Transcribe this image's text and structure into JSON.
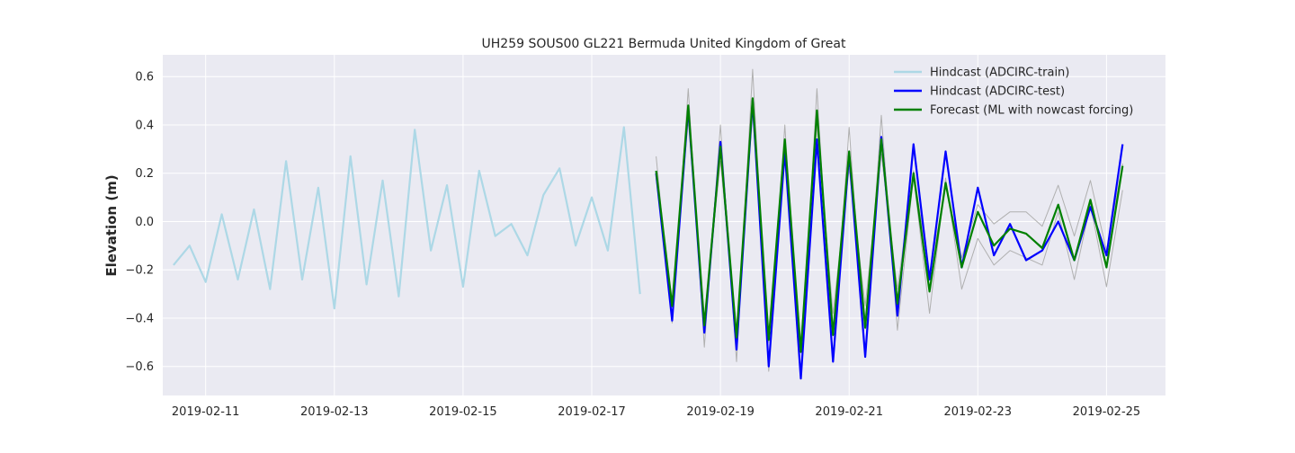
{
  "chart_data": {
    "type": "line",
    "title": "UH259 SOUS00 GL221 Bermuda United Kingdom of Great",
    "xlabel": "",
    "ylabel": "Elevation (m)",
    "x_axis_type": "date",
    "xlim": [
      "2019-02-10T08:00",
      "2019-02-25T22:00"
    ],
    "ylim": [
      -0.72,
      0.69
    ],
    "x_ticks": [
      "2019-02-11",
      "2019-02-13",
      "2019-02-15",
      "2019-02-17",
      "2019-02-19",
      "2019-02-21",
      "2019-02-23",
      "2019-02-25"
    ],
    "y_ticks": [
      -0.6,
      -0.4,
      -0.2,
      0.0,
      0.2,
      0.4,
      0.6
    ],
    "y_tick_labels": [
      "−0.6",
      "−0.4",
      "−0.2",
      "0.0",
      "0.2",
      "0.4",
      "0.6"
    ],
    "grid": true,
    "legend_position": "top-right",
    "background": "#eaeaf2",
    "series": [
      {
        "name": "Hindcast (ADCIRC-train)",
        "color": "#add8e6",
        "in_legend": true,
        "x": [
          "2019-02-10T12:00",
          "2019-02-10T18:00",
          "2019-02-11T00:00",
          "2019-02-11T06:00",
          "2019-02-11T12:00",
          "2019-02-11T18:00",
          "2019-02-12T00:00",
          "2019-02-12T06:00",
          "2019-02-12T12:00",
          "2019-02-12T18:00",
          "2019-02-13T00:00",
          "2019-02-13T06:00",
          "2019-02-13T12:00",
          "2019-02-13T18:00",
          "2019-02-14T00:00",
          "2019-02-14T06:00",
          "2019-02-14T12:00",
          "2019-02-14T18:00",
          "2019-02-15T00:00",
          "2019-02-15T06:00",
          "2019-02-15T12:00",
          "2019-02-15T18:00",
          "2019-02-16T00:00",
          "2019-02-16T06:00",
          "2019-02-16T12:00",
          "2019-02-16T18:00",
          "2019-02-17T00:00",
          "2019-02-17T06:00",
          "2019-02-17T12:00",
          "2019-02-17T18:00"
        ],
        "y": [
          -0.18,
          -0.1,
          -0.25,
          0.03,
          -0.24,
          0.05,
          -0.28,
          0.25,
          -0.24,
          0.14,
          -0.36,
          0.27,
          -0.26,
          0.17,
          -0.31,
          0.38,
          -0.12,
          0.15,
          -0.27,
          0.21,
          -0.06,
          -0.01,
          -0.14,
          0.11,
          0.22,
          -0.1,
          0.1,
          -0.12,
          0.39,
          -0.3
        ]
      },
      {
        "name": "",
        "color": "#b0b0b0",
        "in_legend": false,
        "x": [
          "2019-02-18T00:00",
          "2019-02-18T06:00",
          "2019-02-18T12:00",
          "2019-02-18T18:00",
          "2019-02-19T00:00",
          "2019-02-19T06:00",
          "2019-02-19T12:00",
          "2019-02-19T18:00",
          "2019-02-20T00:00",
          "2019-02-20T06:00",
          "2019-02-20T12:00",
          "2019-02-20T18:00",
          "2019-02-21T00:00",
          "2019-02-21T06:00",
          "2019-02-21T12:00",
          "2019-02-21T18:00",
          "2019-02-22T00:00",
          "2019-02-22T06:00",
          "2019-02-22T12:00",
          "2019-02-22T18:00",
          "2019-02-23T00:00",
          "2019-02-23T06:00",
          "2019-02-23T12:00",
          "2019-02-23T18:00",
          "2019-02-24T00:00",
          "2019-02-24T06:00",
          "2019-02-24T12:00",
          "2019-02-24T18:00",
          "2019-02-25T00:00",
          "2019-02-25T06:00"
        ],
        "y": [
          0.27,
          -0.42,
          0.55,
          -0.52,
          0.4,
          -0.58,
          0.63,
          -0.62,
          0.4,
          -0.65,
          0.55,
          -0.57,
          0.39,
          -0.55,
          0.44,
          -0.45,
          0.19,
          -0.38,
          0.18,
          -0.28,
          -0.07,
          -0.18,
          -0.12,
          -0.15,
          -0.18,
          0.04,
          -0.24,
          0.07,
          -0.27,
          0.13
        ]
      },
      {
        "name": "",
        "color": "#b0b0b0",
        "in_legend": false,
        "x": [
          "2019-02-18T00:00",
          "2019-02-18T06:00",
          "2019-02-18T12:00",
          "2019-02-18T18:00",
          "2019-02-19T00:00",
          "2019-02-19T06:00",
          "2019-02-19T12:00",
          "2019-02-19T18:00",
          "2019-02-20T00:00",
          "2019-02-20T06:00",
          "2019-02-20T12:00",
          "2019-02-20T18:00",
          "2019-02-21T00:00",
          "2019-02-21T06:00",
          "2019-02-21T12:00",
          "2019-02-21T18:00",
          "2019-02-22T00:00",
          "2019-02-22T06:00",
          "2019-02-22T12:00",
          "2019-02-22T18:00",
          "2019-02-23T00:00",
          "2019-02-23T06:00",
          "2019-02-23T12:00",
          "2019-02-23T18:00",
          "2019-02-24T00:00",
          "2019-02-24T06:00",
          "2019-02-24T12:00",
          "2019-02-24T18:00",
          "2019-02-25T00:00",
          "2019-02-25T06:00"
        ],
        "y": [
          0.18,
          -0.33,
          0.42,
          -0.4,
          0.25,
          -0.45,
          0.45,
          -0.5,
          0.28,
          -0.5,
          0.4,
          -0.38,
          0.22,
          -0.35,
          0.28,
          -0.28,
          0.21,
          -0.22,
          0.15,
          -0.15,
          0.07,
          -0.01,
          0.04,
          0.04,
          -0.02,
          0.15,
          -0.06,
          0.17,
          -0.12,
          0.24
        ]
      },
      {
        "name": "Hindcast (ADCIRC-test)",
        "color": "#0000ff",
        "in_legend": true,
        "x": [
          "2019-02-18T00:00",
          "2019-02-18T06:00",
          "2019-02-18T12:00",
          "2019-02-18T18:00",
          "2019-02-19T00:00",
          "2019-02-19T06:00",
          "2019-02-19T12:00",
          "2019-02-19T18:00",
          "2019-02-20T00:00",
          "2019-02-20T06:00",
          "2019-02-20T12:00",
          "2019-02-20T18:00",
          "2019-02-21T00:00",
          "2019-02-21T06:00",
          "2019-02-21T12:00",
          "2019-02-21T18:00",
          "2019-02-22T00:00",
          "2019-02-22T06:00",
          "2019-02-22T12:00",
          "2019-02-22T18:00",
          "2019-02-23T00:00",
          "2019-02-23T06:00",
          "2019-02-23T12:00",
          "2019-02-23T18:00",
          "2019-02-24T00:00",
          "2019-02-24T06:00",
          "2019-02-24T12:00",
          "2019-02-24T18:00",
          "2019-02-25T00:00",
          "2019-02-25T06:00"
        ],
        "y": [
          0.2,
          -0.41,
          0.47,
          -0.46,
          0.33,
          -0.53,
          0.5,
          -0.6,
          0.29,
          -0.65,
          0.34,
          -0.58,
          0.28,
          -0.56,
          0.35,
          -0.39,
          0.32,
          -0.24,
          0.29,
          -0.19,
          0.14,
          -0.14,
          -0.01,
          -0.16,
          -0.12,
          0.0,
          -0.16,
          0.06,
          -0.14,
          0.32
        ]
      },
      {
        "name": "Forecast (ML with nowcast forcing)",
        "color": "#008000",
        "in_legend": true,
        "x": [
          "2019-02-18T00:00",
          "2019-02-18T06:00",
          "2019-02-18T12:00",
          "2019-02-18T18:00",
          "2019-02-19T00:00",
          "2019-02-19T06:00",
          "2019-02-19T12:00",
          "2019-02-19T18:00",
          "2019-02-20T00:00",
          "2019-02-20T06:00",
          "2019-02-20T12:00",
          "2019-02-20T18:00",
          "2019-02-21T00:00",
          "2019-02-21T06:00",
          "2019-02-21T12:00",
          "2019-02-21T18:00",
          "2019-02-22T00:00",
          "2019-02-22T06:00",
          "2019-02-22T12:00",
          "2019-02-22T18:00",
          "2019-02-23T00:00",
          "2019-02-23T06:00",
          "2019-02-23T12:00",
          "2019-02-23T18:00",
          "2019-02-24T00:00",
          "2019-02-24T06:00",
          "2019-02-24T12:00",
          "2019-02-24T18:00",
          "2019-02-25T00:00",
          "2019-02-25T06:00"
        ],
        "y": [
          0.21,
          -0.35,
          0.48,
          -0.43,
          0.31,
          -0.48,
          0.51,
          -0.49,
          0.34,
          -0.54,
          0.46,
          -0.47,
          0.29,
          -0.44,
          0.34,
          -0.34,
          0.2,
          -0.29,
          0.16,
          -0.19,
          0.04,
          -0.1,
          -0.03,
          -0.05,
          -0.11,
          0.07,
          -0.16,
          0.09,
          -0.19,
          0.23
        ]
      }
    ]
  }
}
